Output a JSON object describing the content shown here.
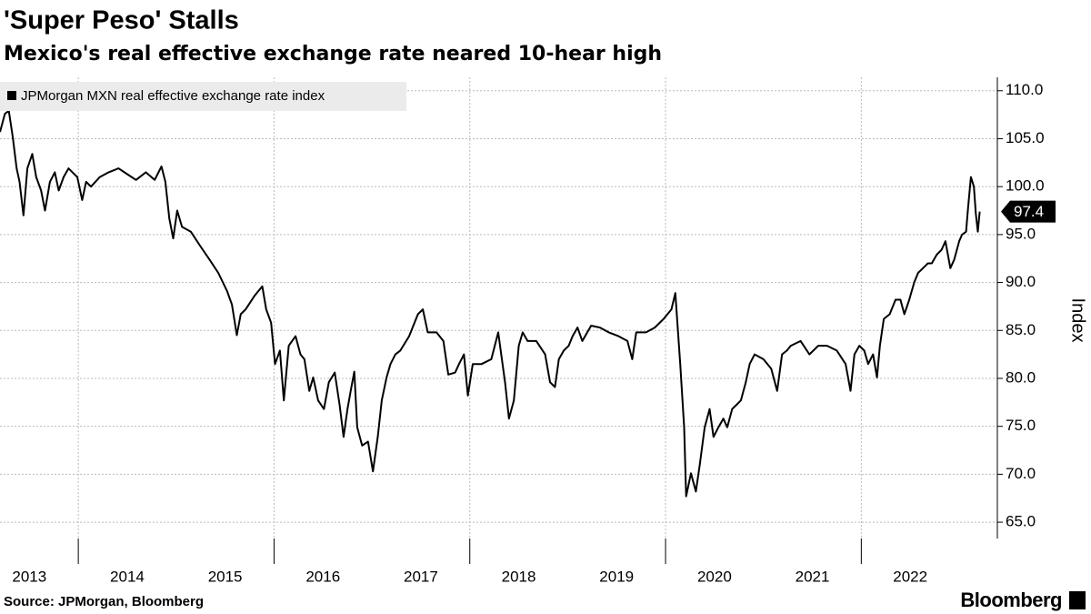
{
  "chart_data": {
    "type": "line",
    "title": "'Super Peso' Stalls",
    "subtitle": "Mexico's real effective exchange rate neared 10-hear high",
    "y_label": "Index",
    "source": "Source: JPMorgan, Bloomberg",
    "brand": "Bloomberg",
    "grid": true,
    "legend": "top-left",
    "xlim": [
      2013.2,
      2023.39
    ],
    "ylim": [
      63.3,
      111.4
    ],
    "xticks": [
      2013,
      2014,
      2015,
      2016,
      2017,
      2018,
      2019,
      2020,
      2021,
      2022
    ],
    "yticks": [
      {
        "value": 65,
        "label": "65.0"
      },
      {
        "value": 70,
        "label": "70.0"
      },
      {
        "value": 75,
        "label": "75.0"
      },
      {
        "value": 80,
        "label": "80.0"
      },
      {
        "value": 85,
        "label": "85.0"
      },
      {
        "value": 90,
        "label": "90.0"
      },
      {
        "value": 95,
        "label": "95.0"
      },
      {
        "value": 100,
        "label": "100.0"
      },
      {
        "value": 105,
        "label": "105.0"
      },
      {
        "value": 110,
        "label": "110.0"
      }
    ],
    "x": [
      2013.2,
      2013.25,
      2013.29,
      2013.33,
      2013.37,
      2013.4,
      2013.44,
      2013.48,
      2013.53,
      2013.57,
      2013.62,
      2013.66,
      2013.71,
      2013.76,
      2013.8,
      2013.85,
      2013.9,
      2013.94,
      2013.99,
      2014.04,
      2014.08,
      2014.13,
      2014.22,
      2014.31,
      2014.41,
      2014.5,
      2014.59,
      2014.69,
      2014.78,
      2014.85,
      2014.89,
      2014.93,
      2014.97,
      2015.01,
      2015.06,
      2015.15,
      2015.24,
      2015.34,
      2015.43,
      2015.52,
      2015.57,
      2015.62,
      2015.66,
      2015.71,
      2015.8,
      2015.88,
      2015.92,
      2015.97,
      2016.01,
      2016.06,
      2016.1,
      2016.15,
      2016.22,
      2016.27,
      2016.31,
      2016.36,
      2016.4,
      2016.45,
      2016.51,
      2016.56,
      2016.62,
      2016.67,
      2016.71,
      2016.75,
      2016.79,
      2016.82,
      2016.85,
      2016.9,
      2016.96,
      2017.01,
      2017.06,
      2017.1,
      2017.15,
      2017.19,
      2017.24,
      2017.29,
      2017.38,
      2017.47,
      2017.52,
      2017.57,
      2017.66,
      2017.73,
      2017.78,
      2017.85,
      2017.89,
      2017.94,
      2017.98,
      2018.03,
      2018.12,
      2018.22,
      2018.29,
      2018.36,
      2018.4,
      2018.45,
      2018.5,
      2018.54,
      2018.59,
      2018.68,
      2018.77,
      2018.82,
      2018.87,
      2018.91,
      2018.96,
      2019.01,
      2019.05,
      2019.1,
      2019.15,
      2019.24,
      2019.33,
      2019.42,
      2019.52,
      2019.61,
      2019.66,
      2019.7,
      2019.8,
      2019.89,
      2019.98,
      2020.06,
      2020.1,
      2020.15,
      2020.19,
      2020.21,
      2020.26,
      2020.31,
      2020.35,
      2020.4,
      2020.45,
      2020.49,
      2020.54,
      2020.59,
      2020.63,
      2020.68,
      2020.72,
      2020.77,
      2020.82,
      2020.86,
      2020.91,
      2021.0,
      2021.08,
      2021.14,
      2021.19,
      2021.24,
      2021.28,
      2021.38,
      2021.47,
      2021.56,
      2021.65,
      2021.75,
      2021.84,
      2021.89,
      2021.93,
      2021.98,
      2022.03,
      2022.07,
      2022.12,
      2022.16,
      2022.19,
      2022.23,
      2022.29,
      2022.35,
      2022.4,
      2022.44,
      2022.49,
      2022.54,
      2022.58,
      2022.63,
      2022.68,
      2022.72,
      2022.77,
      2022.82,
      2022.86,
      2022.91,
      2022.95,
      2023.0,
      2023.03,
      2023.07,
      2023.09,
      2023.12,
      2023.15,
      2023.17,
      2023.19,
      2023.21
    ],
    "series": [
      {
        "name": "JPMorgan MXN real effective exchange rate index",
        "color": "#000000",
        "values": [
          105.7,
          107.6,
          107.9,
          105.2,
          101.9,
          100.5,
          97.0,
          101.9,
          103.4,
          101.0,
          99.6,
          97.5,
          100.5,
          101.5,
          99.6,
          101.0,
          101.9,
          101.5,
          101.0,
          98.6,
          100.5,
          100.0,
          101.0,
          101.5,
          101.9,
          101.3,
          100.7,
          101.5,
          100.7,
          102.1,
          100.5,
          96.7,
          94.6,
          97.5,
          95.8,
          95.3,
          93.9,
          92.4,
          91.0,
          89.1,
          87.7,
          84.5,
          86.7,
          87.2,
          88.6,
          89.6,
          87.2,
          85.8,
          81.5,
          82.9,
          77.7,
          83.4,
          84.4,
          82.5,
          82.0,
          78.7,
          80.1,
          77.7,
          76.8,
          79.6,
          80.6,
          77.2,
          73.9,
          76.8,
          79.1,
          80.7,
          74.9,
          73.0,
          73.4,
          70.3,
          73.9,
          77.7,
          80.1,
          81.5,
          82.5,
          82.9,
          84.4,
          86.7,
          87.2,
          84.8,
          84.8,
          83.9,
          80.4,
          80.6,
          81.5,
          82.5,
          78.2,
          81.5,
          81.5,
          82.0,
          84.8,
          79.6,
          75.8,
          77.7,
          83.4,
          84.8,
          83.9,
          83.9,
          82.5,
          79.6,
          79.1,
          82.0,
          82.9,
          83.4,
          84.4,
          85.3,
          83.9,
          85.5,
          85.3,
          84.8,
          84.4,
          83.9,
          82.0,
          84.8,
          84.8,
          85.3,
          86.2,
          87.2,
          88.9,
          81.5,
          74.9,
          67.7,
          70.1,
          68.2,
          71.0,
          74.9,
          76.8,
          73.9,
          74.9,
          75.8,
          74.9,
          76.8,
          77.2,
          77.7,
          79.6,
          81.5,
          82.5,
          82.0,
          81.0,
          78.7,
          82.5,
          82.9,
          83.4,
          83.9,
          82.5,
          83.4,
          83.4,
          82.9,
          81.5,
          78.7,
          82.5,
          83.4,
          82.9,
          81.5,
          82.5,
          80.1,
          83.4,
          86.2,
          86.7,
          88.2,
          88.2,
          86.7,
          88.2,
          90.0,
          91.0,
          91.5,
          92.0,
          92.0,
          92.9,
          93.4,
          94.3,
          91.5,
          92.4,
          94.3,
          95.0,
          95.3,
          97.7,
          101.0,
          100.0,
          97.2,
          95.3,
          97.4
        ]
      }
    ],
    "annotations": [
      {
        "text": "97.4",
        "x": 2023.21,
        "y": 97.4
      }
    ]
  }
}
